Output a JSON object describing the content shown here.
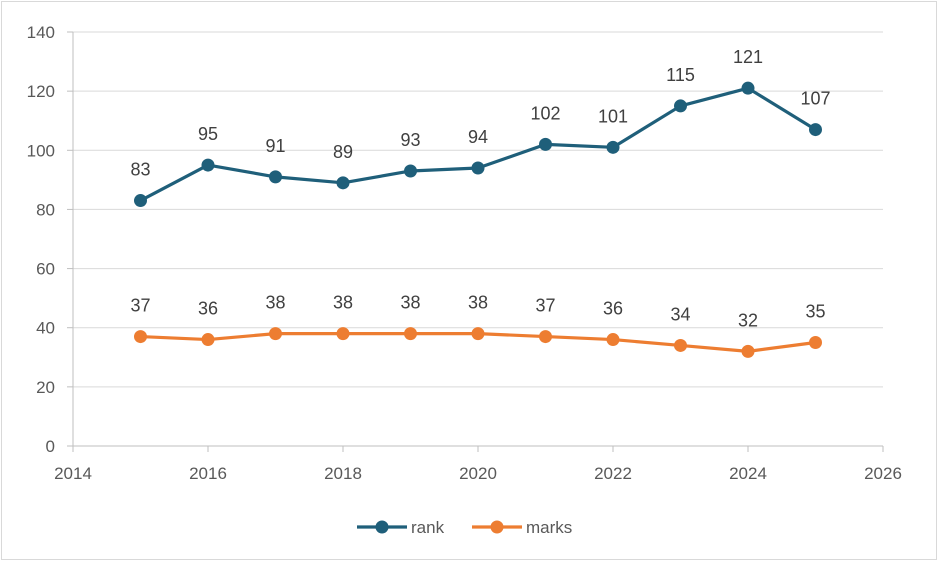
{
  "chart_data": {
    "type": "line",
    "title": "",
    "xlabel": "",
    "ylabel": "",
    "xlim": [
      2014,
      2026
    ],
    "ylim": [
      0,
      140
    ],
    "x_ticks": [
      2014,
      2016,
      2018,
      2020,
      2022,
      2024,
      2026
    ],
    "y_ticks": [
      0,
      20,
      40,
      60,
      80,
      100,
      120,
      140
    ],
    "grid": "horizontal",
    "legend_position": "bottom",
    "x": [
      2015,
      2016,
      2017,
      2018,
      2019,
      2020,
      2021,
      2022,
      2023,
      2024,
      2025
    ],
    "series": [
      {
        "name": "rank",
        "color": "#1f5f7a",
        "values": [
          83,
          95,
          91,
          89,
          93,
          94,
          102,
          101,
          115,
          121,
          107
        ]
      },
      {
        "name": "marks",
        "color": "#ed7d31",
        "values": [
          37,
          36,
          38,
          38,
          38,
          38,
          37,
          36,
          34,
          32,
          35
        ]
      }
    ]
  }
}
